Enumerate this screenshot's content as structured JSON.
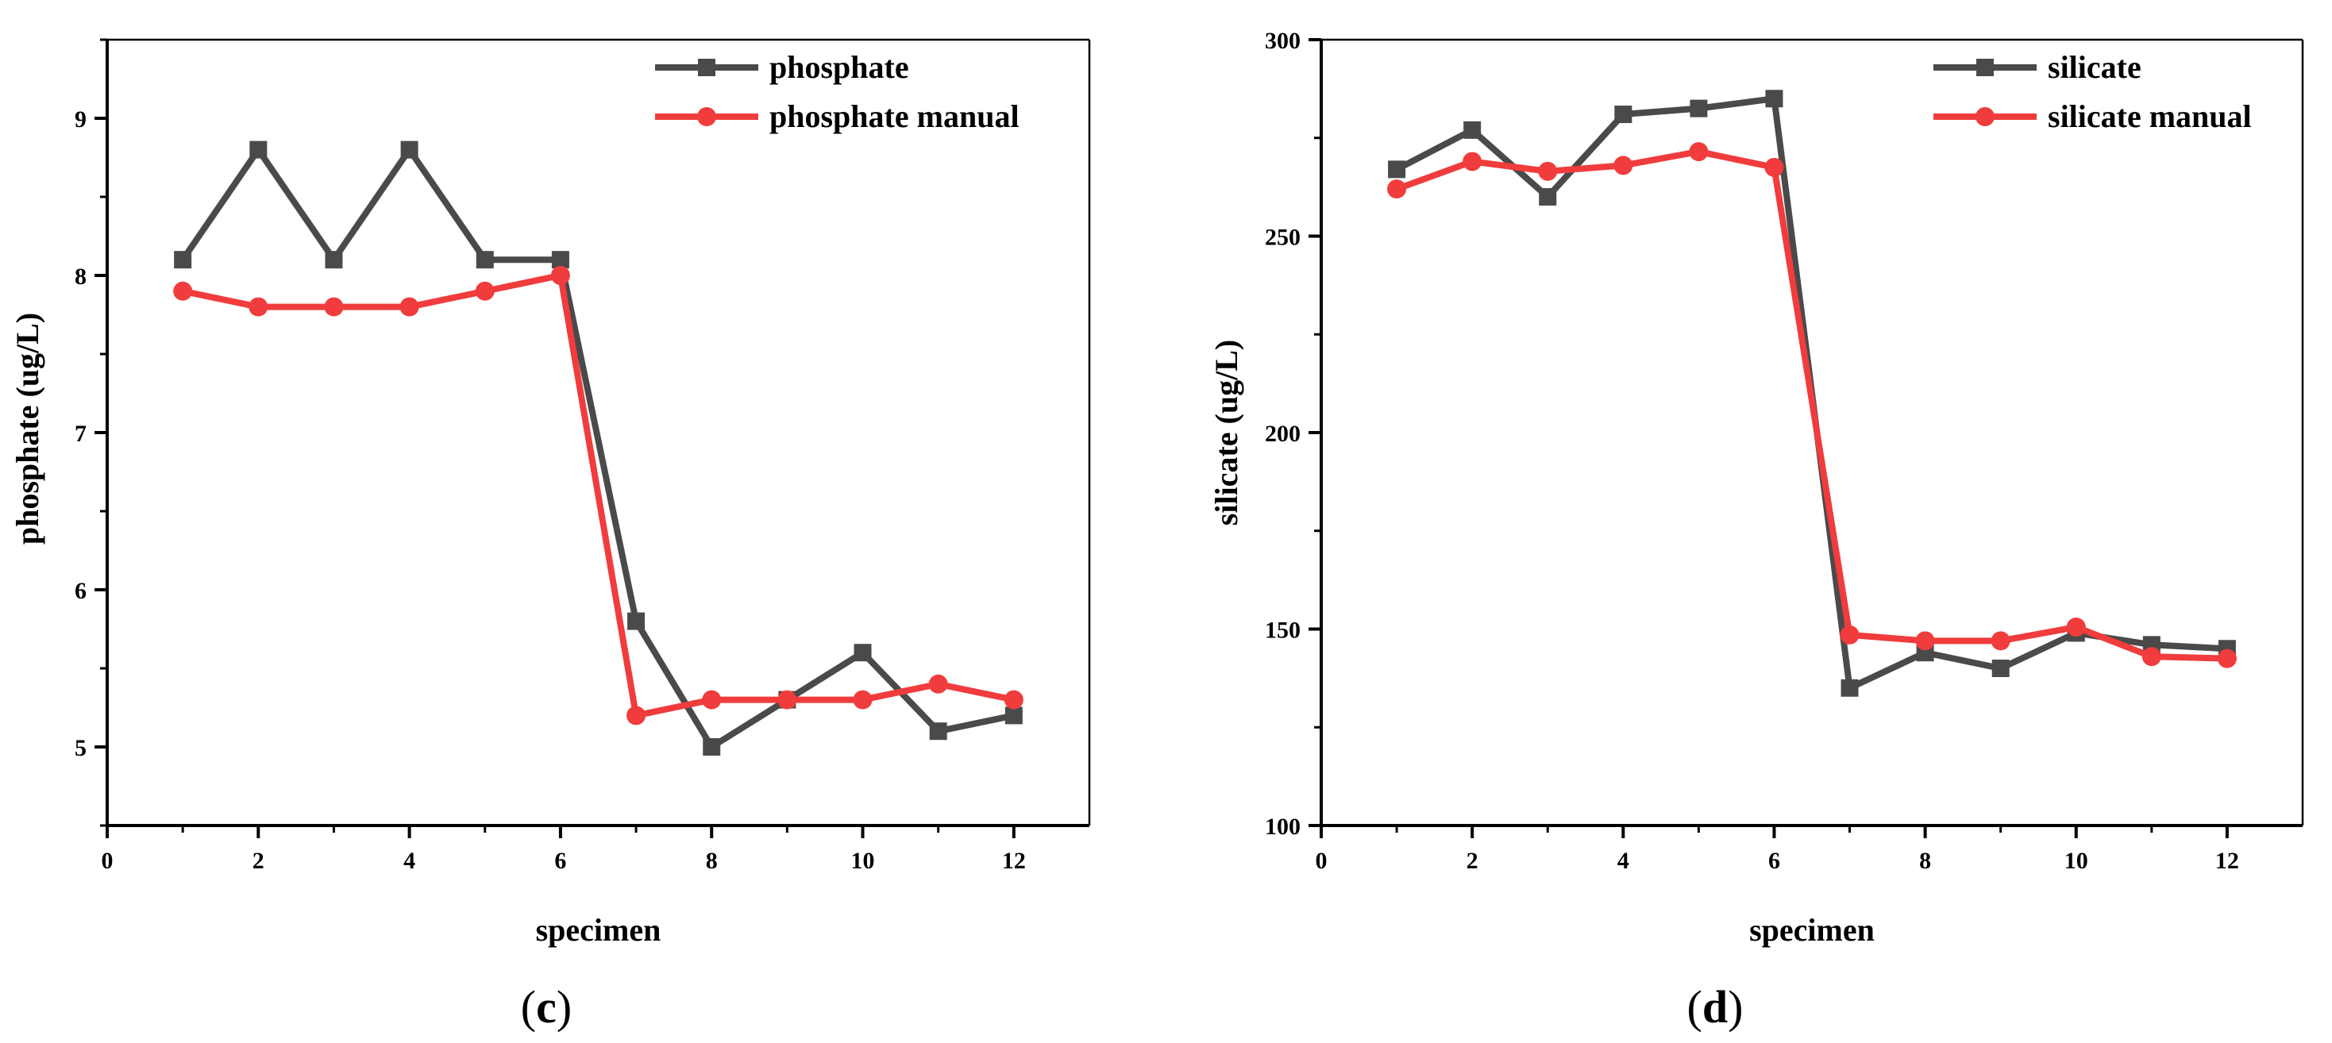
{
  "chart_data": [
    {
      "type": "line",
      "panel_label": "(c)",
      "xlabel": "specimen",
      "ylabel": "phosphate (ug/L)",
      "xlim": [
        0,
        13
      ],
      "ylim": [
        4.5,
        9.5
      ],
      "xticks": [
        0,
        2,
        4,
        6,
        8,
        10,
        12
      ],
      "yticks": [
        5,
        6,
        7,
        8,
        9
      ],
      "legend_position": "top-right",
      "grid": false,
      "x": [
        1,
        2,
        3,
        4,
        5,
        6,
        7,
        8,
        9,
        10,
        11,
        12
      ],
      "series": [
        {
          "name": "phosphate",
          "marker": "square",
          "color": "#4a4a4a",
          "values": [
            8.1,
            8.8,
            8.1,
            8.8,
            8.1,
            8.1,
            5.8,
            5.0,
            5.3,
            5.6,
            5.1,
            5.2
          ]
        },
        {
          "name": "phosphate manual",
          "marker": "circle",
          "color": "#f03c3c",
          "values": [
            7.9,
            7.8,
            7.8,
            7.8,
            7.9,
            8.0,
            5.2,
            5.3,
            5.3,
            5.3,
            5.4,
            5.3
          ]
        }
      ]
    },
    {
      "type": "line",
      "panel_label": "(d)",
      "xlabel": "specimen",
      "ylabel": "silicate (ug/L)",
      "xlim": [
        0,
        13
      ],
      "ylim": [
        100,
        300
      ],
      "xticks": [
        0,
        2,
        4,
        6,
        8,
        10,
        12
      ],
      "yticks": [
        100,
        150,
        200,
        250,
        300
      ],
      "legend_position": "top-right",
      "grid": false,
      "x": [
        1,
        2,
        3,
        4,
        5,
        6,
        7,
        8,
        9,
        10,
        11,
        12
      ],
      "series": [
        {
          "name": "silicate",
          "marker": "square",
          "color": "#4a4a4a",
          "values": [
            267,
            277,
            260,
            281,
            282.5,
            285,
            135,
            144,
            140,
            149,
            146,
            145
          ]
        },
        {
          "name": "silicate manual",
          "marker": "circle",
          "color": "#f03c3c",
          "values": [
            262,
            269,
            266.5,
            268,
            271.5,
            267.5,
            148.5,
            147,
            147,
            150.5,
            143,
            142.5
          ]
        }
      ]
    }
  ]
}
